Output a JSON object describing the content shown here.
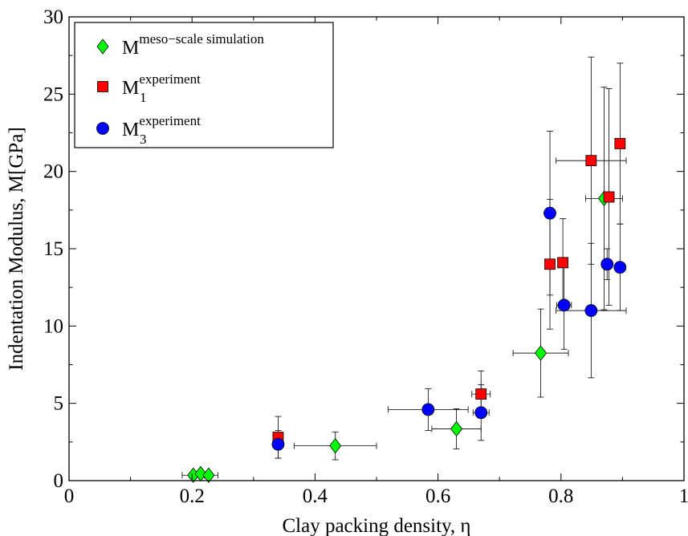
{
  "chart_data": {
    "type": "scatter",
    "title": "",
    "xlabel": "Clay packing density, η",
    "ylabel": "Indentation Modulus, M[GPa]",
    "xlim": [
      0,
      1
    ],
    "ylim": [
      0,
      30
    ],
    "x_ticks": [
      0,
      0.2,
      0.4,
      0.6,
      0.8,
      1
    ],
    "x_tick_labels": [
      "0",
      "0.2",
      "0.4",
      "0.6",
      "0.8",
      "1"
    ],
    "y_ticks": [
      0,
      5,
      10,
      15,
      20,
      25,
      30
    ],
    "y_tick_labels": [
      "0",
      "5",
      "10",
      "15",
      "20",
      "25",
      "30"
    ],
    "grid": false,
    "legend_position": "top-left",
    "series": [
      {
        "name_main": "M",
        "name_sup": "meso−scale simulation",
        "name_sub": "",
        "marker": "diamond",
        "color": "#00ff00",
        "points": [
          {
            "x": 0.202,
            "y": 0.35,
            "xerr": 0.018,
            "yerr": 0.0
          },
          {
            "x": 0.214,
            "y": 0.45,
            "xerr": 0.0,
            "yerr": 0.0
          },
          {
            "x": 0.227,
            "y": 0.35,
            "xerr": 0.015,
            "yerr": 0.0
          },
          {
            "x": 0.433,
            "y": 2.25,
            "xerr": 0.067,
            "yerr": 0.9
          },
          {
            "x": 0.63,
            "y": 3.35,
            "xerr": 0.04,
            "yerr": 1.3
          },
          {
            "x": 0.767,
            "y": 8.25,
            "xerr": 0.045,
            "yerr": 2.85
          },
          {
            "x": 0.87,
            "y": 18.25,
            "xerr": 0.03,
            "yerr": 7.2
          }
        ]
      },
      {
        "name_main": "M",
        "name_sup": "experiment",
        "name_sub": "1",
        "marker": "square",
        "color": "#ff0000",
        "points": [
          {
            "x": 0.34,
            "y": 2.8,
            "xerr": 0.0,
            "yerr": 1.35
          },
          {
            "x": 0.67,
            "y": 5.6,
            "xerr": 0.015,
            "yerr": 1.5
          },
          {
            "x": 0.782,
            "y": 14.0,
            "xerr": 0.0,
            "yerr": 4.2
          },
          {
            "x": 0.803,
            "y": 14.1,
            "xerr": 0.0,
            "yerr": 2.85
          },
          {
            "x": 0.849,
            "y": 20.7,
            "xerr": 0.057,
            "yerr": 6.7
          },
          {
            "x": 0.878,
            "y": 18.35,
            "xerr": 0.0,
            "yerr": 7.0
          },
          {
            "x": 0.896,
            "y": 21.8,
            "xerr": 0.0,
            "yerr": 5.2
          }
        ]
      },
      {
        "name_main": "M",
        "name_sup": "experiment",
        "name_sub": "3",
        "marker": "circle",
        "color": "#0000ff",
        "points": [
          {
            "x": 0.34,
            "y": 2.35,
            "xerr": 0.0,
            "yerr": 0.9
          },
          {
            "x": 0.584,
            "y": 4.6,
            "xerr": 0.065,
            "yerr": 1.35
          },
          {
            "x": 0.67,
            "y": 4.4,
            "xerr": 0.013,
            "yerr": 1.8
          },
          {
            "x": 0.782,
            "y": 17.3,
            "xerr": 0.0,
            "yerr": 5.3
          },
          {
            "x": 0.805,
            "y": 11.35,
            "xerr": 0.012,
            "yerr": 2.85
          },
          {
            "x": 0.849,
            "y": 11.0,
            "xerr": 0.057,
            "yerr": 4.35
          },
          {
            "x": 0.875,
            "y": 14.0,
            "xerr": 0.0,
            "yerr": 1.0
          },
          {
            "x": 0.896,
            "y": 13.8,
            "xerr": 0.0,
            "yerr": 2.8
          }
        ]
      }
    ]
  }
}
